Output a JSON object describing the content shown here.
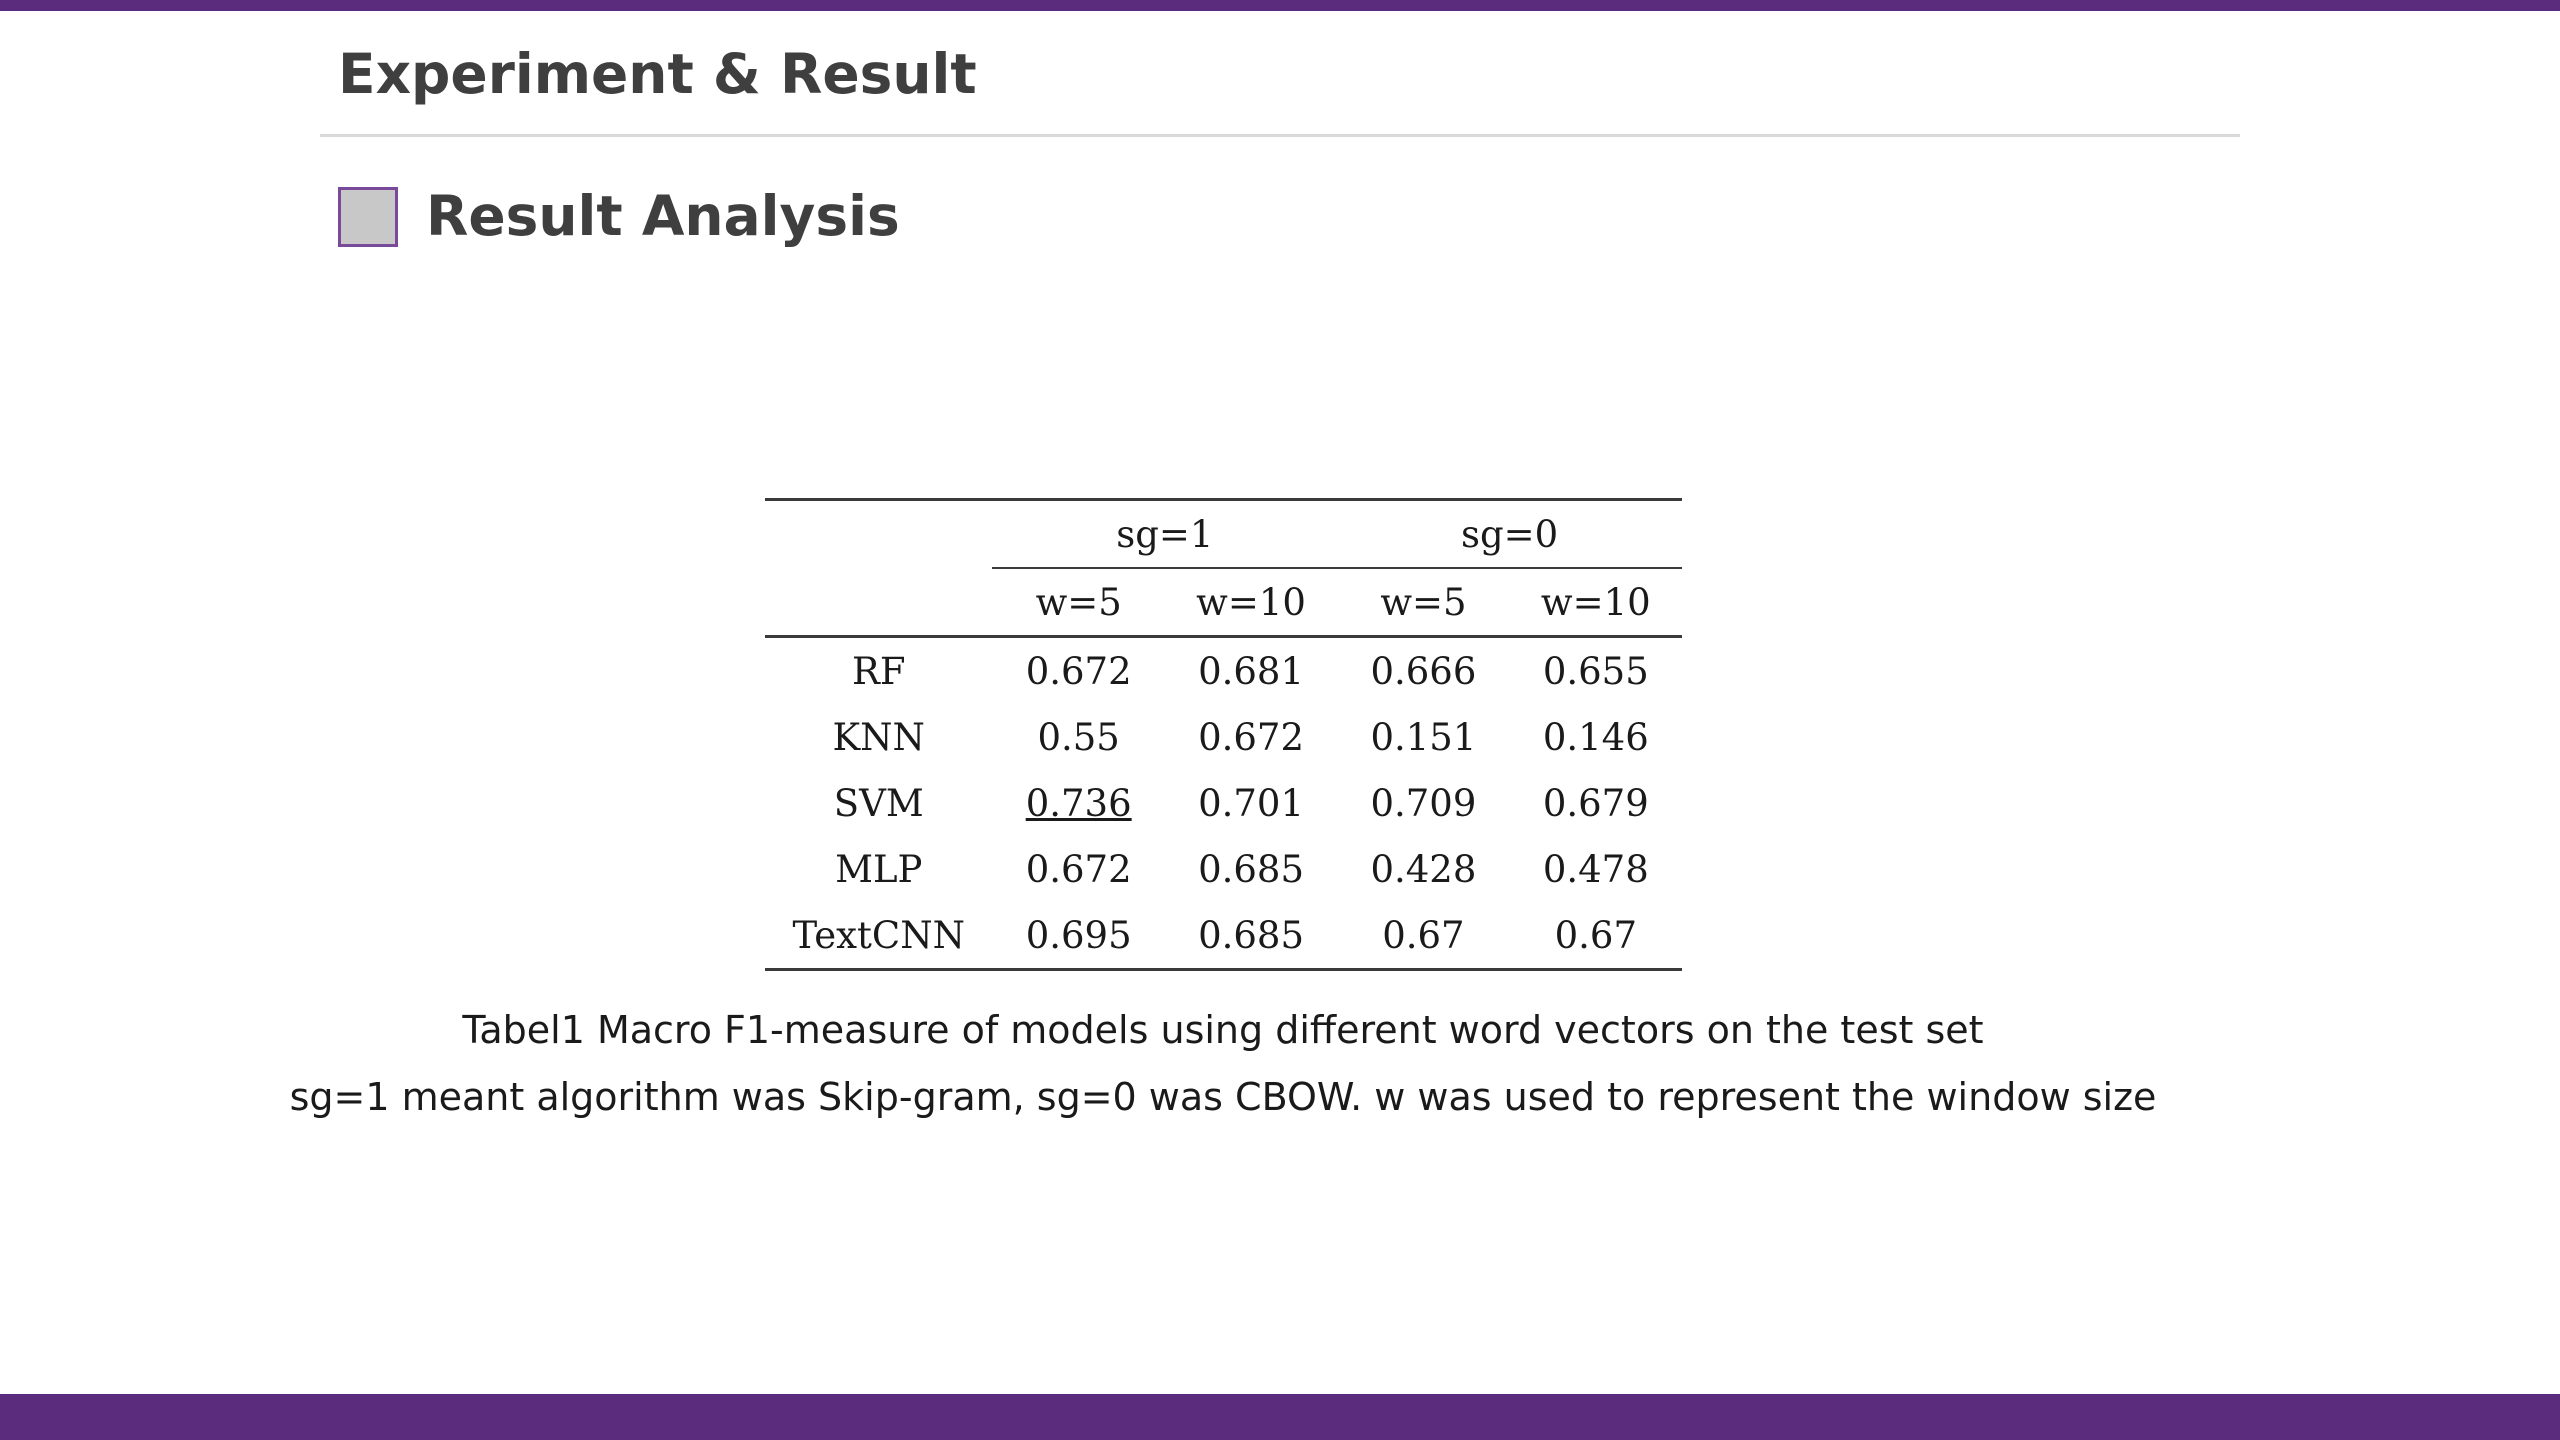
{
  "colors": {
    "accent": "#5b2c7e"
  },
  "header": {
    "title": "Experiment & Result"
  },
  "section": {
    "title": "Result Analysis"
  },
  "table": {
    "groups": [
      {
        "label": "sg=1",
        "cols": [
          "w=5",
          "w=10"
        ]
      },
      {
        "label": "sg=0",
        "cols": [
          "w=5",
          "w=10"
        ]
      }
    ],
    "rows": [
      {
        "model": "RF",
        "values": [
          "0.672",
          "0.681",
          "0.666",
          "0.655"
        ],
        "best_col": 1
      },
      {
        "model": "KNN",
        "values": [
          "0.55",
          "0.672",
          "0.151",
          "0.146"
        ],
        "best_col": 1
      },
      {
        "model": "SVM",
        "values": [
          "0.736",
          "0.701",
          "0.709",
          "0.679"
        ],
        "best_col": 0,
        "overall_best": true
      },
      {
        "model": "MLP",
        "values": [
          "0.672",
          "0.685",
          "0.428",
          "0.478"
        ],
        "best_col": 1
      },
      {
        "model": "TextCNN",
        "values": [
          "0.695",
          "0.685",
          "0.67",
          "0.67"
        ],
        "best_col": 0
      }
    ]
  },
  "caption": {
    "line1": "Tabel1 Macro F1-measure of models using different word vectors on the test set",
    "line2": "sg=1 meant algorithm was Skip-gram, sg=0 was CBOW. w was used to represent the window size"
  }
}
